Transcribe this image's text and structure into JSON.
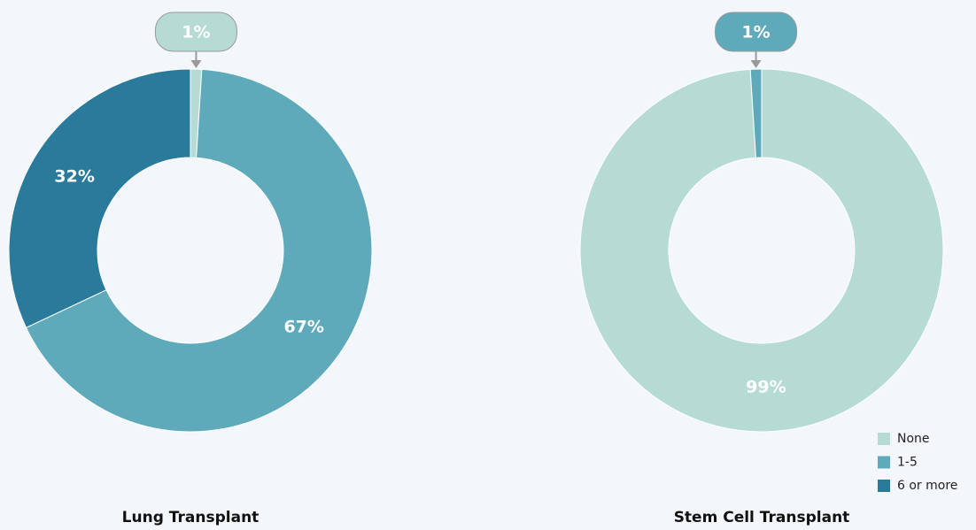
{
  "chart_data": [
    {
      "type": "pie",
      "donut": true,
      "title": "Lung Transplant",
      "categories": [
        "None",
        "1-5",
        "6 or more"
      ],
      "values": [
        1,
        67,
        32
      ],
      "value_labels": [
        "1%",
        "67%",
        "32%"
      ],
      "colors": [
        "#b5dbd4",
        "#5eaabb",
        "#2a7a9c"
      ]
    },
    {
      "type": "pie",
      "donut": true,
      "title": "Stem Cell Transplant",
      "categories": [
        "None",
        "1-5",
        "6 or more"
      ],
      "values": [
        99,
        1,
        0
      ],
      "value_labels": [
        "99%",
        "1%",
        null
      ],
      "colors": [
        "#b5dbd4",
        "#5eaabb",
        "#2a7a9c"
      ],
      "legend": "bottom-right"
    }
  ]
}
